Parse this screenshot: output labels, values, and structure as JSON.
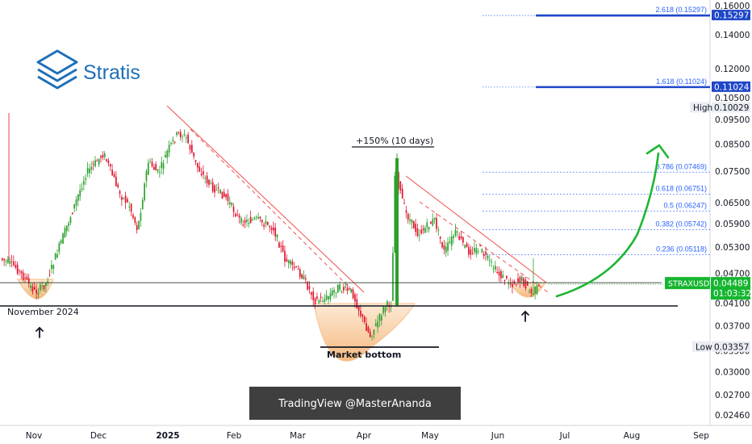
{
  "logo": {
    "name": "Stratis",
    "brand_color": "#1e6fb8"
  },
  "watermark": "TradingView @MasterAnanda",
  "colors": {
    "up": "#2ca02c",
    "down": "#e0142f",
    "fib": "#2962ff",
    "trend": "#f05050",
    "arrow": "#1fb534",
    "cup": "#f5b87a",
    "price_badge": "#16b530"
  },
  "chart_data": {
    "type": "candlestick",
    "symbol": "STRAXUSDT",
    "last_price": "0.04489",
    "countdown": "01:03:32",
    "y_scale": "log",
    "ylim": [
      0.0236,
      0.161
    ],
    "x_ticks": [
      "Nov",
      "Dec",
      "2025",
      "Feb",
      "Mar",
      "Apr",
      "May",
      "Jun",
      "Jul",
      "Aug",
      "Sep"
    ],
    "y_ticks": [
      "0.16000",
      "0.14000",
      "0.12000",
      "0.10500",
      "0.09500",
      "0.08500",
      "0.07500",
      "0.06500",
      "0.05900",
      "0.05300",
      "0.04700",
      "0.04100",
      "0.03700",
      "0.03300",
      "0.03000",
      "0.02700",
      "0.02460"
    ],
    "y_tick_values": [
      0.16,
      0.14,
      0.12,
      0.105,
      0.095,
      0.085,
      0.075,
      0.065,
      0.059,
      0.053,
      0.047,
      0.041,
      0.037,
      0.033,
      0.03,
      0.027,
      0.0246
    ],
    "fib_levels": [
      {
        "label": "2.618 (0.15297)",
        "value": 0.15297
      },
      {
        "label": "1.618 (0.11024)",
        "value": 0.11024
      },
      {
        "label": "0.786 (0.07469)",
        "value": 0.07469
      },
      {
        "label": "0.618 (0.06751)",
        "value": 0.06751
      },
      {
        "label": "0.5 (0.06247)",
        "value": 0.06247
      },
      {
        "label": "0.382 (0.05742)",
        "value": 0.05742
      },
      {
        "label": "0.236 (0.05118)",
        "value": 0.05118
      }
    ],
    "targets": [
      {
        "label": "0.15297",
        "value": 0.15297
      },
      {
        "label": "0.11024",
        "value": 0.11024
      }
    ],
    "high": {
      "label": "High",
      "value_text": "0.10029",
      "value": 0.10029
    },
    "low": {
      "label": "Low",
      "value_text": "0.03357",
      "value": 0.03357
    },
    "support_line": 0.0405,
    "current_line": 0.04489,
    "annotations": {
      "nov": "November 2024",
      "bottom": "Market bottom",
      "pump": "+150% (10 days)"
    }
  }
}
